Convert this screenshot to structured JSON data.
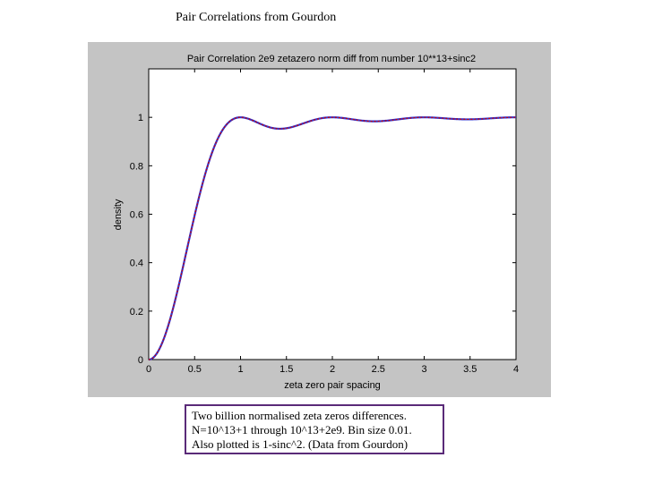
{
  "slide": {
    "title": "Pair Correlations from Gourdon",
    "caption_lines": [
      "Two billion normalised zeta zeros differences.",
      "N=10^13+1 through 10^13+2e9. Bin size 0.01.",
      "Also plotted is 1-sinc^2. (Data from Gourdon)"
    ]
  },
  "chart_data": {
    "type": "line",
    "title": "Pair Correlation 2e9 zetazero norm diff from number 10**13+sinc2",
    "xlabel": "zeta zero pair spacing",
    "ylabel": "density",
    "xlim": [
      0,
      4
    ],
    "ylim": [
      0,
      1.2
    ],
    "x_ticks": [
      "0",
      "0.5",
      "1",
      "1.5",
      "2",
      "2.5",
      "3",
      "3.5",
      "4"
    ],
    "y_ticks": [
      "0",
      "0.2",
      "0.4",
      "0.6",
      "0.8",
      "1"
    ],
    "grid": false,
    "series": [
      {
        "function": "1 - (sin(pi*x)/(pi*x))^2",
        "x_range": [
          0,
          4
        ],
        "color": "#3333cc"
      },
      {
        "function": "1 - (sin(pi*x)/(pi*x))^2",
        "x_range": [
          0,
          4
        ],
        "color": "#cc0000",
        "style": "dotted"
      }
    ],
    "colors": {
      "figure_bg": "#c4c4c4",
      "axes_bg": "#ffffff"
    }
  }
}
